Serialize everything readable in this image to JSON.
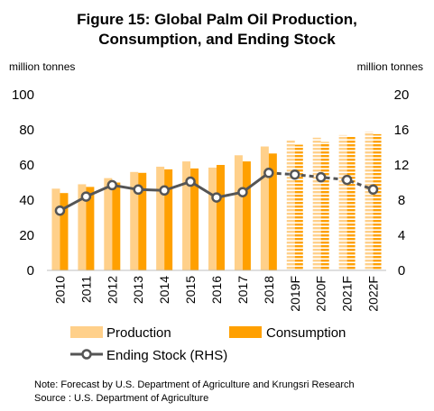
{
  "chart_data": {
    "type": "bar",
    "title_line1": "Figure 15: Global Palm Oil  Production,",
    "title_line2": "Consumption, and Ending Stock",
    "ylabel_left": "million tonnes",
    "ylabel_right": "million tonnes",
    "ylim_left": [
      0,
      100
    ],
    "yticks_left": [
      "0",
      "20",
      "40",
      "60",
      "80",
      "100"
    ],
    "ylim_right": [
      0,
      20
    ],
    "yticks_right": [
      "0",
      "4",
      "8",
      "12",
      "16",
      "20"
    ],
    "categories": [
      "2010",
      "2011",
      "2012",
      "2013",
      "2014",
      "2015",
      "2016",
      "2017",
      "2018",
      "2019F",
      "2020F",
      "2021F",
      "2022F"
    ],
    "forecast_from_index": 9,
    "series": [
      {
        "name": "Production",
        "axis": "left",
        "kind": "bar",
        "color": "#FFD08A",
        "values": [
          46.5,
          49,
          52.5,
          56,
          59,
          62,
          58.5,
          65.5,
          70.5,
          74,
          75.5,
          77,
          79
        ]
      },
      {
        "name": "Consumption",
        "axis": "left",
        "kind": "bar",
        "color": "#FFA000",
        "values": [
          44,
          47.5,
          50,
          55.5,
          57.5,
          58,
          60,
          62,
          66.5,
          71.5,
          73,
          76,
          77.5
        ]
      },
      {
        "name": "Ending Stock (RHS)",
        "axis": "right",
        "kind": "line",
        "color": "#555555",
        "values": [
          6.8,
          8.4,
          9.7,
          9.2,
          9.1,
          10.1,
          8.3,
          8.9,
          11.1,
          10.9,
          10.6,
          10.3,
          9.2
        ]
      }
    ],
    "grid": false,
    "legend_position": "bottom",
    "note_line1": "Note: Forecast by U.S. Department of Agriculture and Krungsri Research",
    "note_line2": "Source : U.S. Department of Agriculture"
  }
}
